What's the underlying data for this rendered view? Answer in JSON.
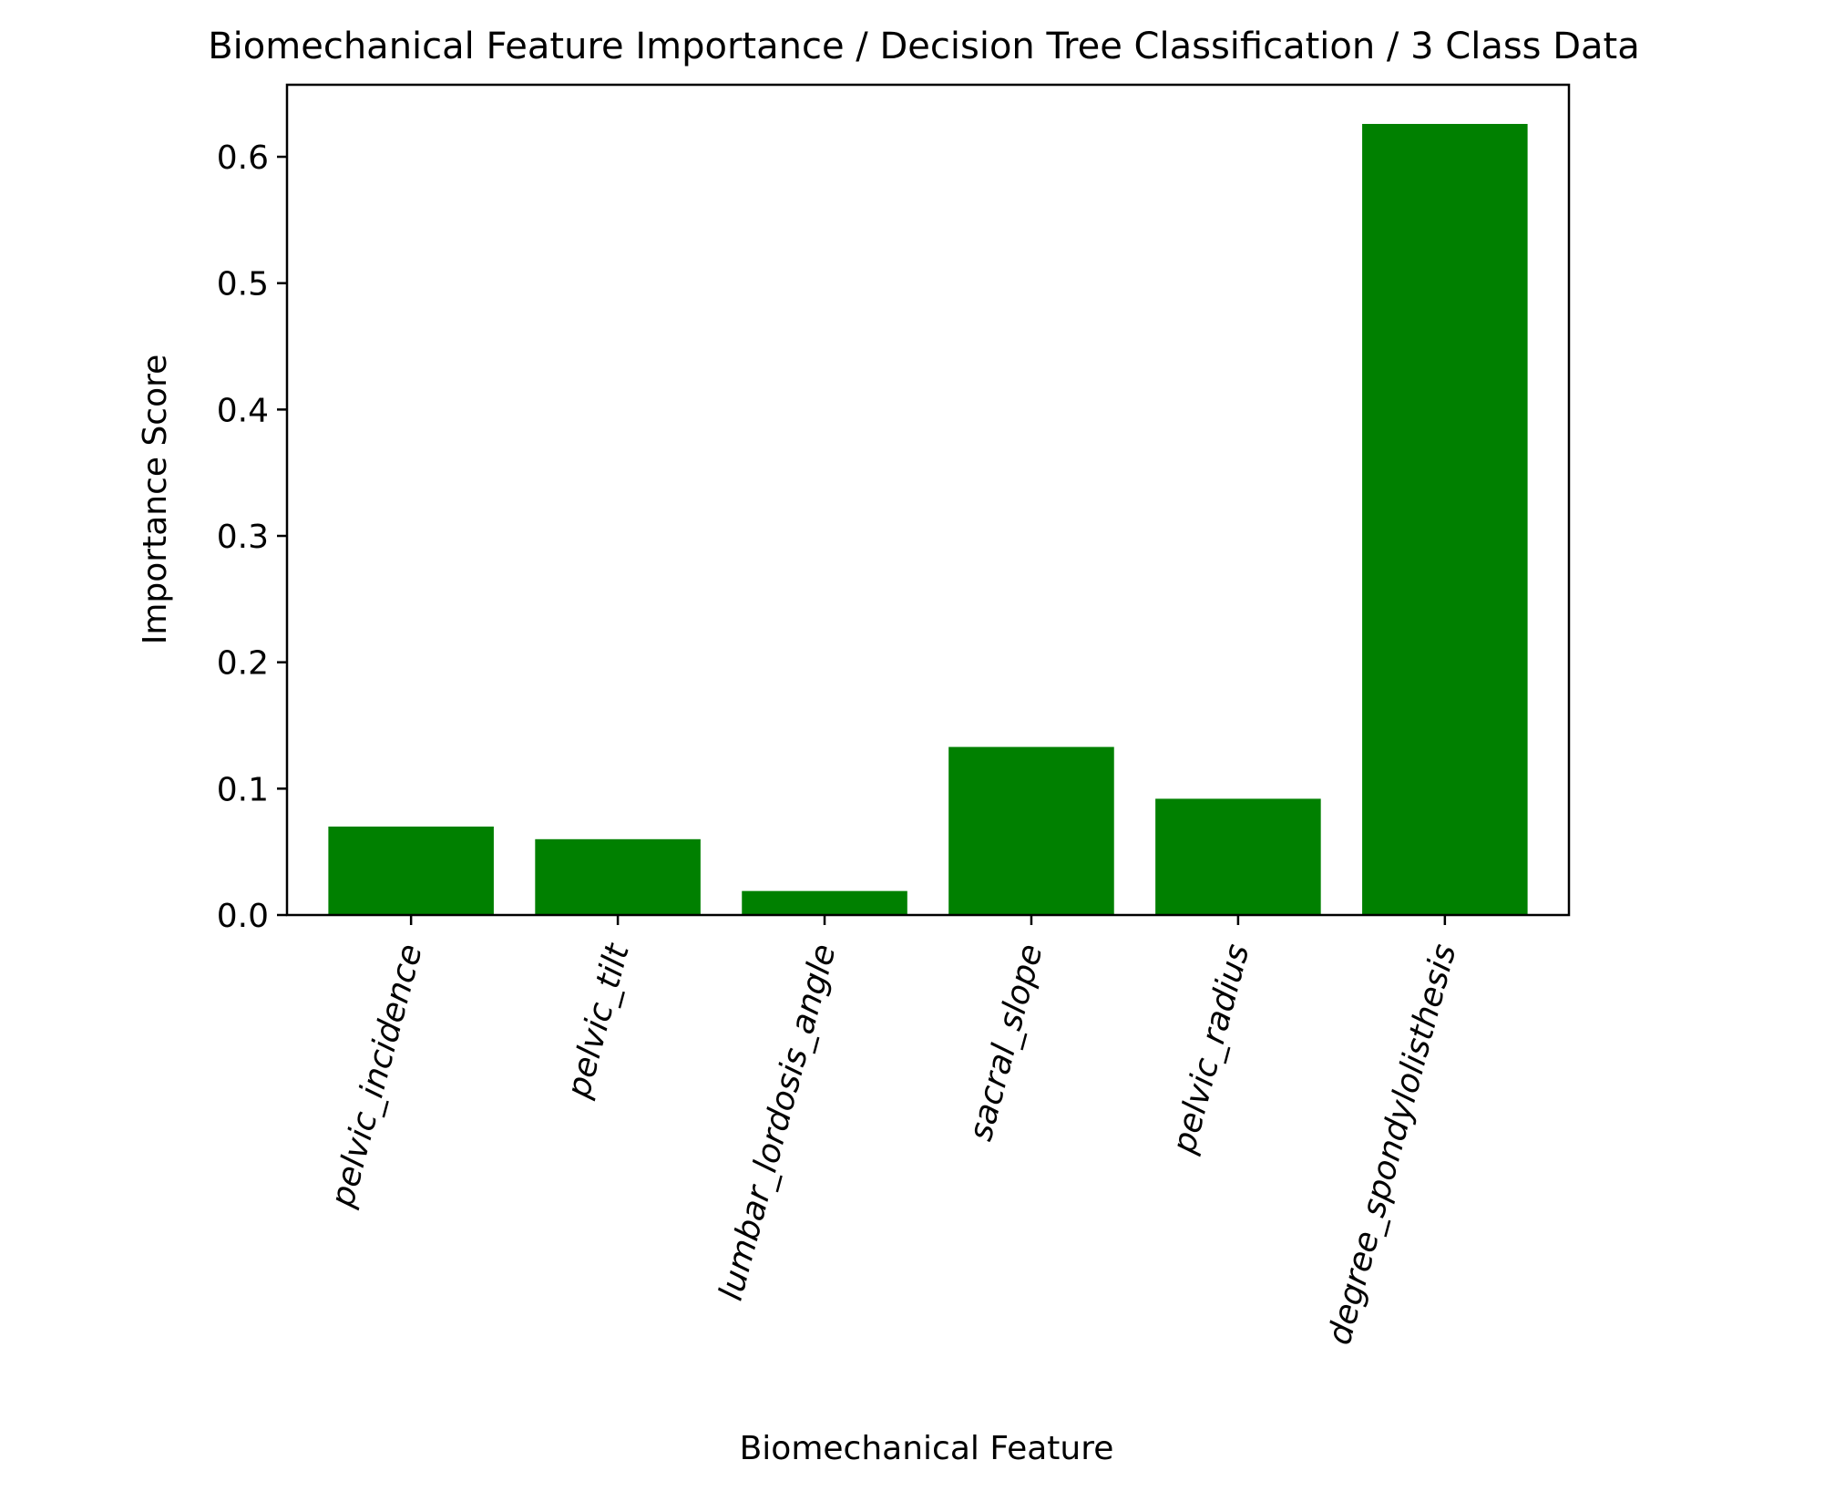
{
  "chart_data": {
    "type": "bar",
    "title": "Biomechanical Feature Importance / Decision Tree Classification / 3 Class Data",
    "xlabel": "Biomechanical Feature",
    "ylabel": "Importance Score",
    "categories": [
      "pelvic_incidence",
      "pelvic_tilt",
      "lumbar_lordosis_angle",
      "sacral_slope",
      "pelvic_radius",
      "degree_spondylolisthesis"
    ],
    "values": [
      0.07,
      0.06,
      0.019,
      0.133,
      0.092,
      0.626
    ],
    "ylim": [
      0,
      0.657
    ],
    "yticks": [
      0.0,
      0.1,
      0.2,
      0.3,
      0.4,
      0.5,
      0.6
    ],
    "ytick_labels": [
      "0.0",
      "0.1",
      "0.2",
      "0.3",
      "0.4",
      "0.5",
      "0.6"
    ],
    "x_tick_label_rotation_deg": -75,
    "bar_color": "#008000",
    "grid": false,
    "legend": "none"
  }
}
